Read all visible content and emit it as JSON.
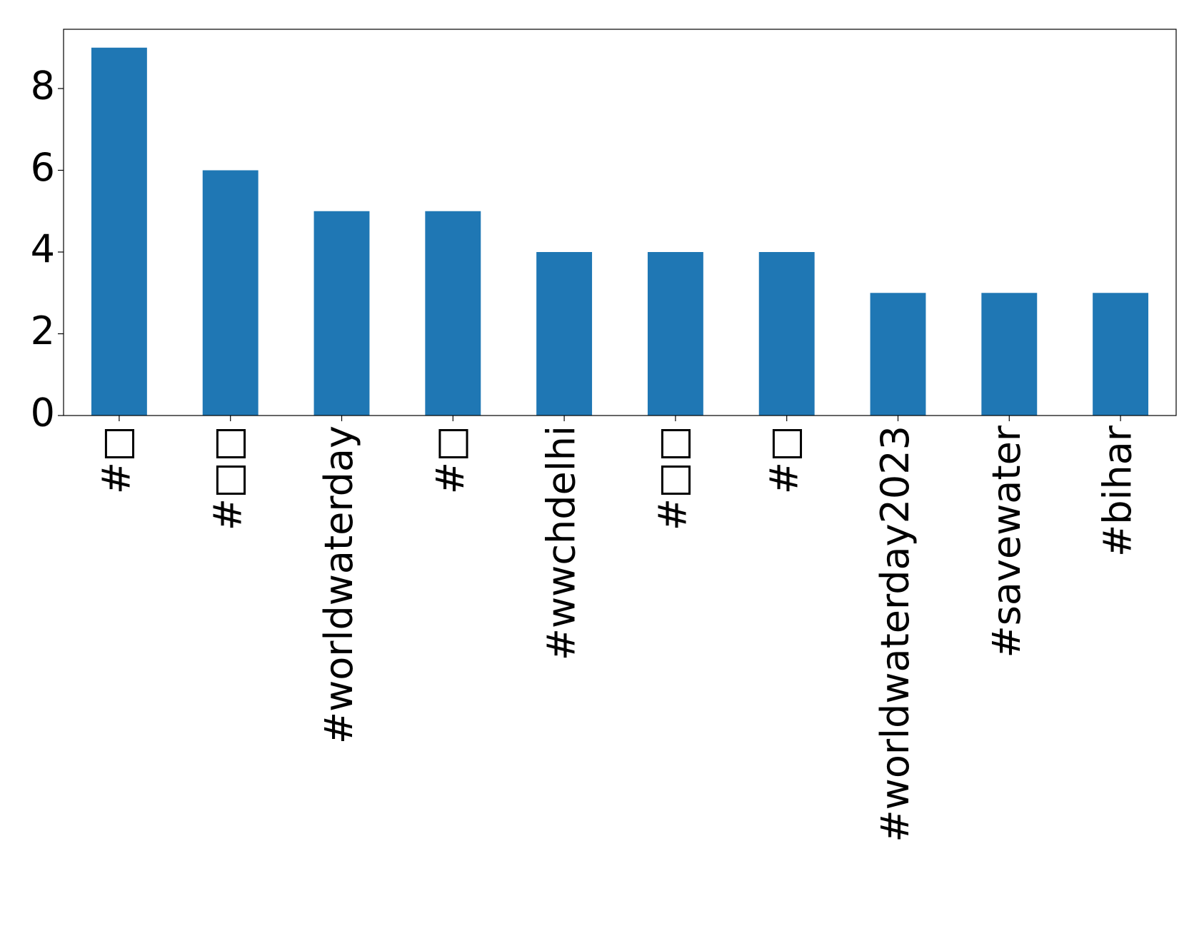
{
  "chart_data": {
    "type": "bar",
    "categories": [
      "#□",
      "#□□",
      "#worldwaterday",
      "#□",
      "#wwchdelhi",
      "#□□",
      "#□",
      "#worldwaterday2023",
      "#savewater",
      "#bihar"
    ],
    "values": [
      9,
      6,
      5,
      5,
      4,
      4,
      4,
      3,
      3,
      3
    ],
    "color": "#1f77b4",
    "ylim": [
      0,
      9.45
    ],
    "yticks": [
      0,
      2,
      4,
      6,
      8
    ]
  }
}
